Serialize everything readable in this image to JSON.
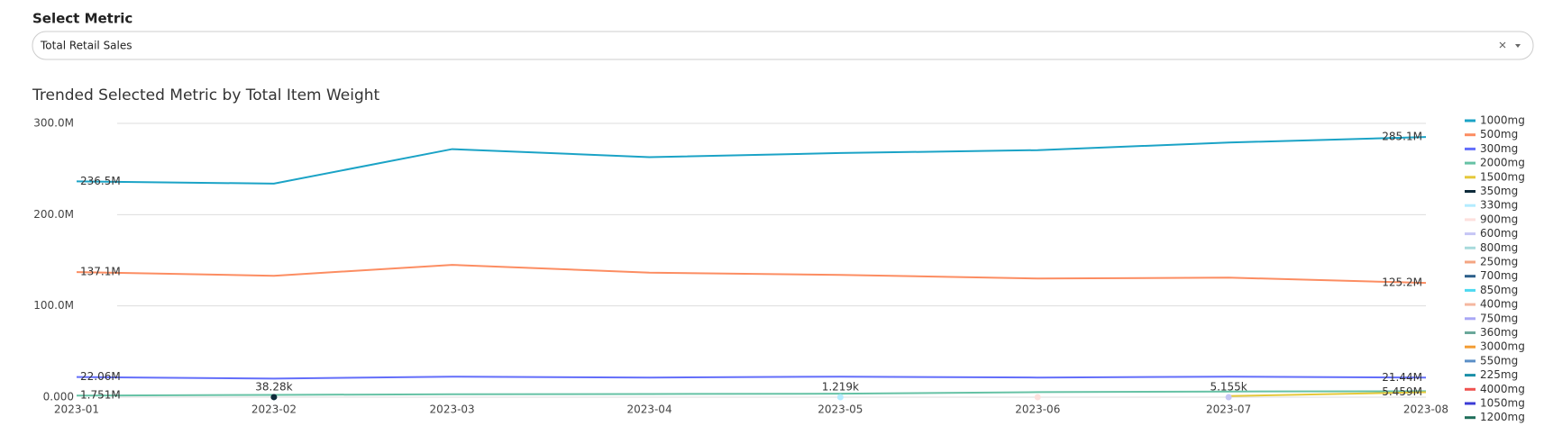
{
  "select": {
    "label": "Select Metric",
    "value": "Total Retail Sales"
  },
  "chart_data": {
    "type": "line",
    "title": "Trended Selected Metric by Total Item Weight",
    "x": [
      "2023-01",
      "2023-02",
      "2023-03",
      "2023-04",
      "2023-05",
      "2023-06",
      "2023-07",
      "2023-08"
    ],
    "ylim": [
      0,
      300000000
    ],
    "yticks": [
      {
        "value": 0,
        "label": "0.000"
      },
      {
        "value": 100000000,
        "label": "100.0M"
      },
      {
        "value": 200000000,
        "label": "200.0M"
      },
      {
        "value": 300000000,
        "label": "300.0M"
      }
    ],
    "grid": true,
    "legend": "right",
    "series": [
      {
        "name": "1000mg",
        "color": "#1ba3c6",
        "values": [
          236500000,
          234000000,
          271800000,
          263000000,
          267500000,
          270700000,
          279000000,
          285100000
        ],
        "value_labels": [
          "236.5M",
          null,
          null,
          null,
          null,
          null,
          null,
          "285.1M"
        ]
      },
      {
        "name": "500mg",
        "color": "#fc8d62",
        "values": [
          137100000,
          133000000,
          145000000,
          136400000,
          134000000,
          130000000,
          131000000,
          125200000
        ],
        "value_labels": [
          "137.1M",
          null,
          null,
          null,
          null,
          null,
          null,
          "125.2M"
        ]
      },
      {
        "name": "300mg",
        "color": "#636efa",
        "values": [
          22060000,
          20400000,
          22500000,
          21500000,
          22500000,
          21500000,
          22500000,
          21440000
        ],
        "value_labels": [
          "22.06M",
          null,
          null,
          null,
          null,
          null,
          null,
          "21.44M"
        ]
      },
      {
        "name": "2000mg",
        "color": "#66c2a5",
        "values": [
          1751000,
          2500000,
          3200000,
          3500000,
          3800000,
          5500000,
          6200000,
          6500000
        ],
        "value_labels": [
          "1.751M",
          null,
          null,
          null,
          null,
          null,
          null,
          null
        ]
      },
      {
        "name": "1500mg",
        "color": "#e5c83a",
        "values": [
          null,
          null,
          null,
          null,
          null,
          null,
          1200000,
          5459000
        ],
        "value_labels": [
          null,
          null,
          null,
          null,
          null,
          null,
          null,
          "5.459M"
        ]
      },
      {
        "name": "350mg",
        "color": "#0d2a3a",
        "values": [
          null,
          38280,
          null,
          null,
          null,
          null,
          null,
          null
        ],
        "value_labels": [
          null,
          "38.28k",
          null,
          null,
          null,
          null,
          null,
          null
        ]
      },
      {
        "name": "330mg",
        "color": "#b3ecff",
        "values": [
          null,
          null,
          null,
          null,
          1219,
          null,
          null,
          null
        ],
        "value_labels": [
          null,
          null,
          null,
          null,
          "1.219k",
          null,
          null,
          null
        ]
      },
      {
        "name": "900mg",
        "color": "#fde0dd",
        "values": [
          null,
          null,
          null,
          null,
          null,
          96.89,
          null,
          null
        ]
      },
      {
        "name": "600mg",
        "color": "#c6c6f5",
        "values": [
          null,
          null,
          null,
          null,
          null,
          null,
          5155,
          null
        ],
        "value_labels": [
          null,
          null,
          null,
          null,
          null,
          null,
          "5.155k",
          null
        ]
      },
      {
        "name": "800mg",
        "color": "#a8dadc",
        "values": [
          null,
          null,
          null,
          null,
          null,
          null,
          null,
          null
        ]
      },
      {
        "name": "250mg",
        "color": "#f4a582",
        "values": [
          null,
          null,
          null,
          null,
          null,
          null,
          null,
          null
        ]
      },
      {
        "name": "700mg",
        "color": "#2c5f8a",
        "values": [
          null,
          null,
          null,
          null,
          null,
          null,
          null,
          null
        ]
      },
      {
        "name": "850mg",
        "color": "#4dd9f0",
        "values": [
          null,
          null,
          null,
          null,
          null,
          null,
          null,
          null
        ]
      },
      {
        "name": "400mg",
        "color": "#f5b7a0",
        "values": [
          null,
          null,
          null,
          null,
          null,
          null,
          null,
          null
        ]
      },
      {
        "name": "750mg",
        "color": "#a9a7f5",
        "values": [
          null,
          null,
          null,
          null,
          null,
          null,
          null,
          null
        ]
      },
      {
        "name": "360mg",
        "color": "#6aa89a",
        "values": [
          null,
          null,
          null,
          null,
          null,
          null,
          null,
          null
        ]
      },
      {
        "name": "3000mg",
        "color": "#f39c34",
        "values": [
          null,
          null,
          null,
          null,
          null,
          null,
          null,
          null
        ]
      },
      {
        "name": "550mg",
        "color": "#5b8fc7",
        "values": [
          null,
          null,
          null,
          null,
          null,
          null,
          null,
          null
        ]
      },
      {
        "name": "225mg",
        "color": "#1a8fa8",
        "values": [
          null,
          null,
          null,
          null,
          null,
          null,
          null,
          null
        ]
      },
      {
        "name": "4000mg",
        "color": "#ef5350",
        "values": [
          null,
          null,
          null,
          null,
          null,
          null,
          null,
          null
        ]
      },
      {
        "name": "1050mg",
        "color": "#3b3bd6",
        "values": [
          null,
          null,
          null,
          null,
          null,
          null,
          null,
          null
        ]
      },
      {
        "name": "1200mg",
        "color": "#1f6e5a",
        "values": [
          null,
          null,
          null,
          null,
          null,
          null,
          null,
          null
        ]
      }
    ]
  }
}
